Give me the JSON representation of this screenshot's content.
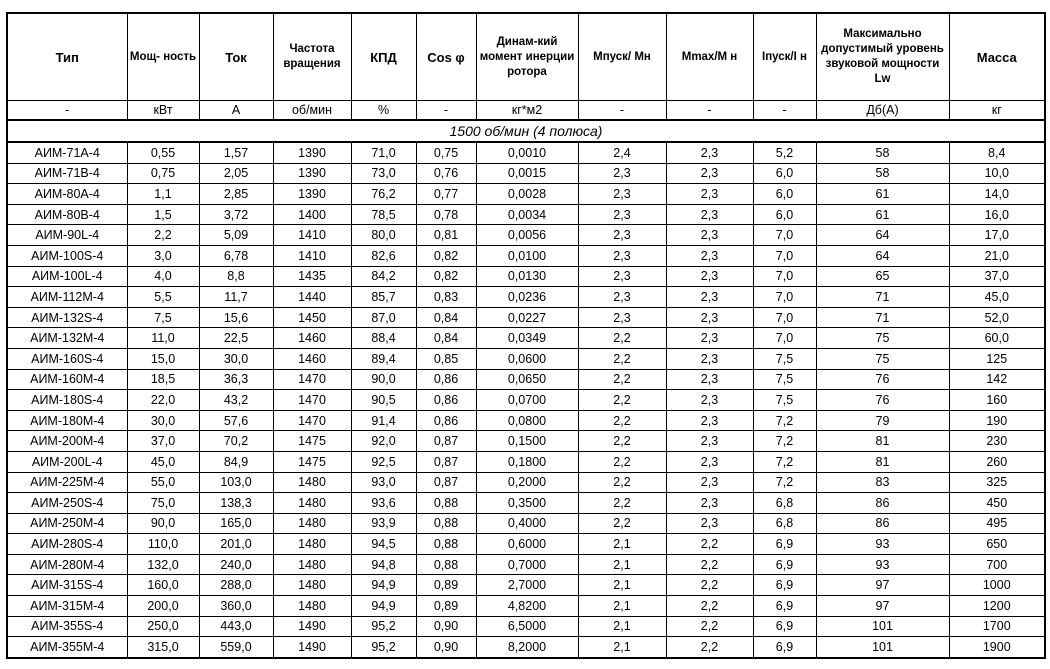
{
  "headers": [
    "Тип",
    "Мощ-\nность",
    "Ток",
    "Частота вращения",
    "КПД",
    "Cos φ",
    "Динам-кий момент инерции ротора",
    "Мпуск/ Мн",
    "Mmax/M н",
    "Iпуск/I н",
    "Максимально допустимый уровень звуковой мощности Lw",
    "Масса"
  ],
  "units": [
    "-",
    "кВт",
    "А",
    "об/мин",
    "%",
    "-",
    "кг*м2",
    "-",
    "-",
    "-",
    "Дб(А)",
    "кг"
  ],
  "section": "1500 об/мин (4 полюса)",
  "rows": [
    [
      "АИМ-71А-4",
      "0,55",
      "1,57",
      "1390",
      "71,0",
      "0,75",
      "0,0010",
      "2,4",
      "2,3",
      "5,2",
      "58",
      "8,4"
    ],
    [
      "АИМ-71В-4",
      "0,75",
      "2,05",
      "1390",
      "73,0",
      "0,76",
      "0,0015",
      "2,3",
      "2,3",
      "6,0",
      "58",
      "10,0"
    ],
    [
      "АИМ-80А-4",
      "1,1",
      "2,85",
      "1390",
      "76,2",
      "0,77",
      "0,0028",
      "2,3",
      "2,3",
      "6,0",
      "61",
      "14,0"
    ],
    [
      "АИМ-80В-4",
      "1,5",
      "3,72",
      "1400",
      "78,5",
      "0,78",
      "0,0034",
      "2,3",
      "2,3",
      "6,0",
      "61",
      "16,0"
    ],
    [
      "АИМ-90L-4",
      "2,2",
      "5,09",
      "1410",
      "80,0",
      "0,81",
      "0,0056",
      "2,3",
      "2,3",
      "7,0",
      "64",
      "17,0"
    ],
    [
      "АИМ-100S-4",
      "3,0",
      "6,78",
      "1410",
      "82,6",
      "0,82",
      "0,0100",
      "2,3",
      "2,3",
      "7,0",
      "64",
      "21,0"
    ],
    [
      "АИМ-100L-4",
      "4,0",
      "8,8",
      "1435",
      "84,2",
      "0,82",
      "0,0130",
      "2,3",
      "2,3",
      "7,0",
      "65",
      "37,0"
    ],
    [
      "АИМ-112М-4",
      "5,5",
      "11,7",
      "1440",
      "85,7",
      "0,83",
      "0,0236",
      "2,3",
      "2,3",
      "7,0",
      "71",
      "45,0"
    ],
    [
      "АИМ-132S-4",
      "7,5",
      "15,6",
      "1450",
      "87,0",
      "0,84",
      "0,0227",
      "2,3",
      "2,3",
      "7,0",
      "71",
      "52,0"
    ],
    [
      "АИМ-132М-4",
      "11,0",
      "22,5",
      "1460",
      "88,4",
      "0,84",
      "0,0349",
      "2,2",
      "2,3",
      "7,0",
      "75",
      "60,0"
    ],
    [
      "АИМ-160S-4",
      "15,0",
      "30,0",
      "1460",
      "89,4",
      "0,85",
      "0,0600",
      "2,2",
      "2,3",
      "7,5",
      "75",
      "125"
    ],
    [
      "АИМ-160М-4",
      "18,5",
      "36,3",
      "1470",
      "90,0",
      "0,86",
      "0,0650",
      "2,2",
      "2,3",
      "7,5",
      "76",
      "142"
    ],
    [
      "АИМ-180S-4",
      "22,0",
      "43,2",
      "1470",
      "90,5",
      "0,86",
      "0,0700",
      "2,2",
      "2,3",
      "7,5",
      "76",
      "160"
    ],
    [
      "АИМ-180М-4",
      "30,0",
      "57,6",
      "1470",
      "91,4",
      "0,86",
      "0,0800",
      "2,2",
      "2,3",
      "7,2",
      "79",
      "190"
    ],
    [
      "АИМ-200М-4",
      "37,0",
      "70,2",
      "1475",
      "92,0",
      "0,87",
      "0,1500",
      "2,2",
      "2,3",
      "7,2",
      "81",
      "230"
    ],
    [
      "АИМ-200L-4",
      "45,0",
      "84,9",
      "1475",
      "92,5",
      "0,87",
      "0,1800",
      "2,2",
      "2,3",
      "7,2",
      "81",
      "260"
    ],
    [
      "АИМ-225М-4",
      "55,0",
      "103,0",
      "1480",
      "93,0",
      "0,87",
      "0,2000",
      "2,2",
      "2,3",
      "7,2",
      "83",
      "325"
    ],
    [
      "АИМ-250S-4",
      "75,0",
      "138,3",
      "1480",
      "93,6",
      "0,88",
      "0,3500",
      "2,2",
      "2,3",
      "6,8",
      "86",
      "450"
    ],
    [
      "АИМ-250М-4",
      "90,0",
      "165,0",
      "1480",
      "93,9",
      "0,88",
      "0,4000",
      "2,2",
      "2,3",
      "6,8",
      "86",
      "495"
    ],
    [
      "АИМ-280S-4",
      "110,0",
      "201,0",
      "1480",
      "94,5",
      "0,88",
      "0,6000",
      "2,1",
      "2,2",
      "6,9",
      "93",
      "650"
    ],
    [
      "АИМ-280М-4",
      "132,0",
      "240,0",
      "1480",
      "94,8",
      "0,88",
      "0,7000",
      "2,1",
      "2,2",
      "6,9",
      "93",
      "700"
    ],
    [
      "АИМ-315S-4",
      "160,0",
      "288,0",
      "1480",
      "94,9",
      "0,89",
      "2,7000",
      "2,1",
      "2,2",
      "6,9",
      "97",
      "1000"
    ],
    [
      "АИМ-315М-4",
      "200,0",
      "360,0",
      "1480",
      "94,9",
      "0,89",
      "4,8200",
      "2,1",
      "2,2",
      "6,9",
      "97",
      "1200"
    ],
    [
      "АИМ-355S-4",
      "250,0",
      "443,0",
      "1490",
      "95,2",
      "0,90",
      "6,5000",
      "2,1",
      "2,2",
      "6,9",
      "101",
      "1700"
    ],
    [
      "АИМ-355М-4",
      "315,0",
      "559,0",
      "1490",
      "95,2",
      "0,90",
      "8,2000",
      "2,1",
      "2,2",
      "6,9",
      "101",
      "1900"
    ]
  ]
}
